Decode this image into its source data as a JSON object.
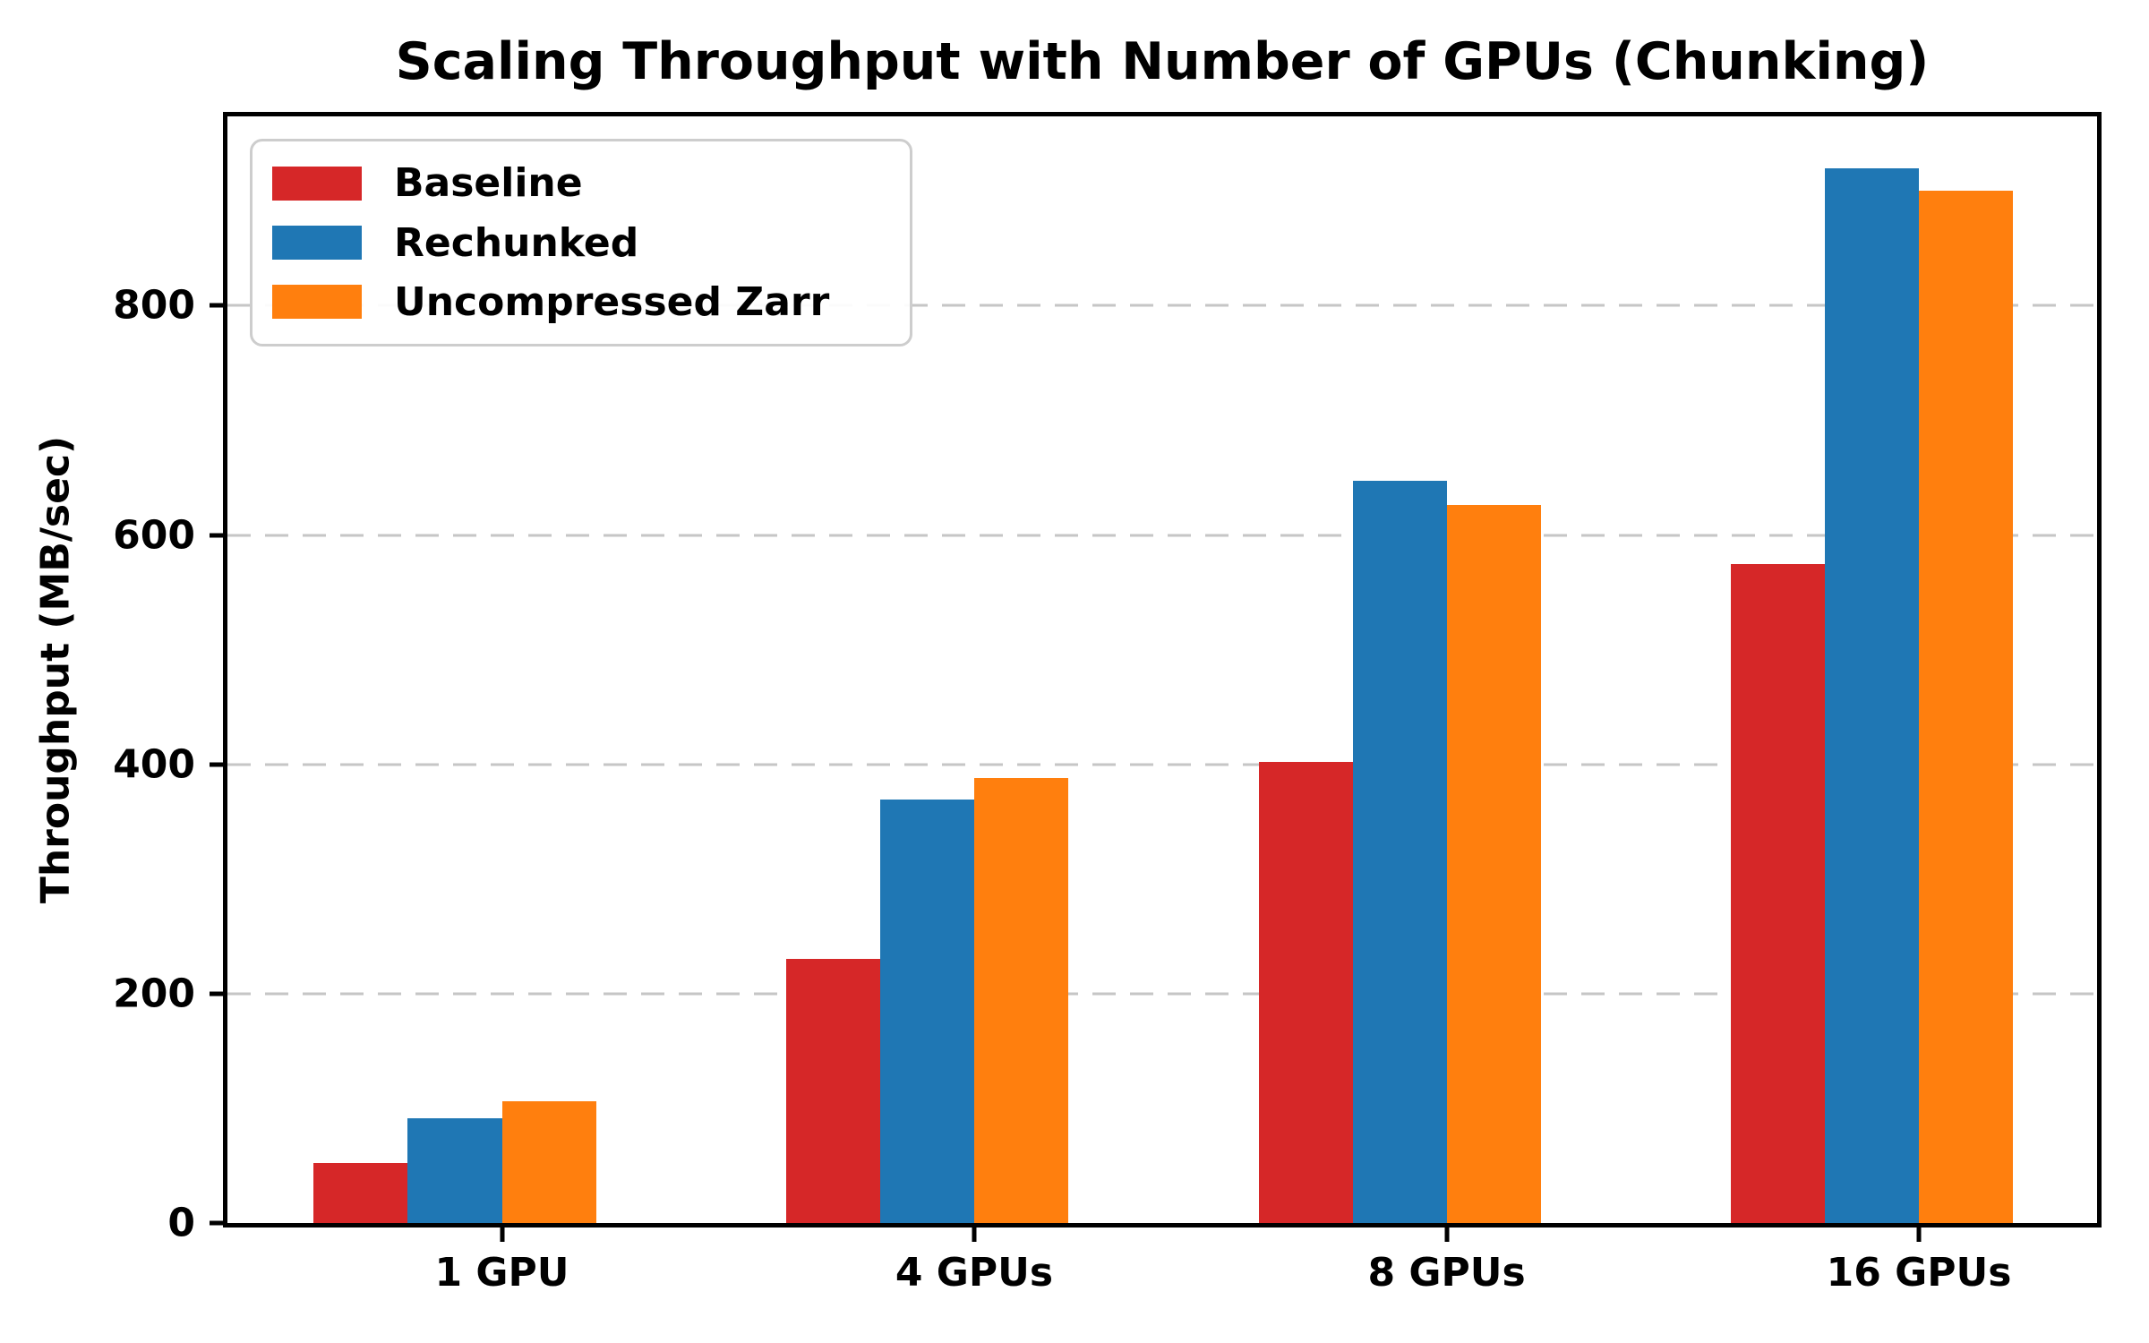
{
  "title": "Scaling Throughput with Number of GPUs (Chunking)",
  "chart_data": {
    "type": "bar",
    "title": "Scaling Throughput with Number of GPUs (Chunking)",
    "xlabel": "",
    "ylabel": "Throughput (MB/sec)",
    "categories": [
      "1 GPU",
      "4 GPUs",
      "8 GPUs",
      "16 GPUs"
    ],
    "series": [
      {
        "name": "Baseline",
        "color": "#d62728",
        "values": [
          52,
          230,
          402,
          575
        ]
      },
      {
        "name": "Rechunked",
        "color": "#1f77b4",
        "values": [
          91,
          369,
          647,
          920
        ]
      },
      {
        "name": "Uncompressed Zarr",
        "color": "#ff7f0e",
        "values": [
          106,
          388,
          626,
          900
        ]
      }
    ],
    "yticks": [
      0,
      200,
      400,
      600,
      800
    ],
    "ylim": [
      0,
      965
    ],
    "grid": "horizontal-dashed",
    "legend_position": "upper-left",
    "units": "MB/sec"
  }
}
